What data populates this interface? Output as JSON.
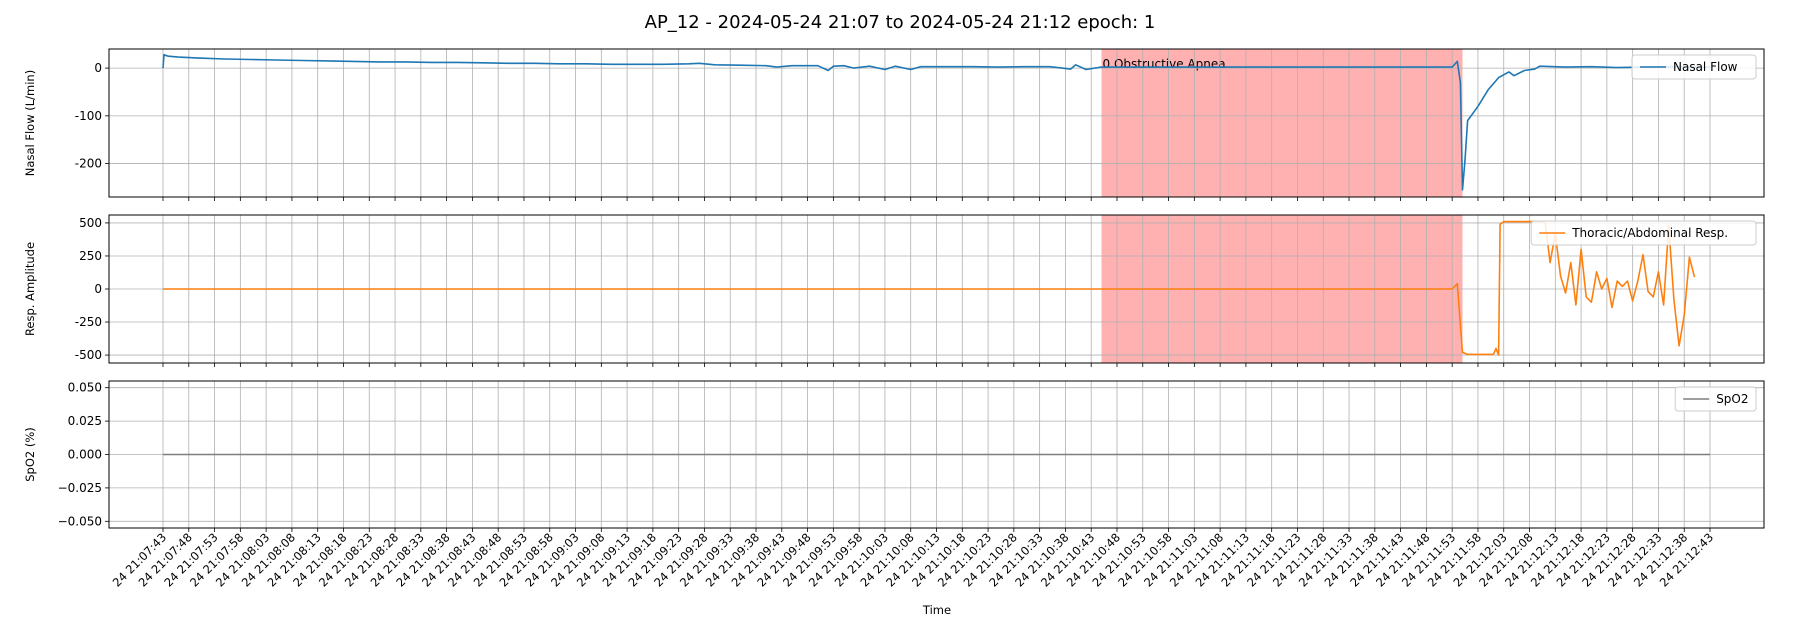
{
  "figure_title": "AP_12 - 2024-05-24 21:07 to 2024-05-24 21:12 epoch: 1",
  "x_axis_label": "Time",
  "x_tick_labels": [
    "24 21:07:43",
    "24 21:07:48",
    "24 21:07:53",
    "24 21:07:58",
    "24 21:08:03",
    "24 21:08:08",
    "24 21:08:13",
    "24 21:08:18",
    "24 21:08:23",
    "24 21:08:28",
    "24 21:08:33",
    "24 21:08:38",
    "24 21:08:43",
    "24 21:08:48",
    "24 21:08:53",
    "24 21:08:58",
    "24 21:09:03",
    "24 21:09:08",
    "24 21:09:13",
    "24 21:09:18",
    "24 21:09:23",
    "24 21:09:28",
    "24 21:09:33",
    "24 21:09:38",
    "24 21:09:43",
    "24 21:09:48",
    "24 21:09:53",
    "24 21:09:58",
    "24 21:10:03",
    "24 21:10:08",
    "24 21:10:13",
    "24 21:10:18",
    "24 21:10:23",
    "24 21:10:28",
    "24 21:10:33",
    "24 21:10:38",
    "24 21:10:43",
    "24 21:10:48",
    "24 21:10:53",
    "24 21:10:58",
    "24 21:11:03",
    "24 21:11:08",
    "24 21:11:13",
    "24 21:11:18",
    "24 21:11:23",
    "24 21:11:28",
    "24 21:11:33",
    "24 21:11:38",
    "24 21:11:43",
    "24 21:11:48",
    "24 21:11:53",
    "24 21:11:58",
    "24 21:12:03",
    "24 21:12:08",
    "24 21:12:13",
    "24 21:12:18",
    "24 21:12:23",
    "24 21:12:28",
    "24 21:12:33",
    "24 21:12:38",
    "24 21:12:43"
  ],
  "chart_data": [
    {
      "type": "line",
      "ylabel": "Nasal Flow (L/min)",
      "xlim": [
        "2024-05-24 21:07:43",
        "2024-05-24 21:12:43"
      ],
      "ylim": [
        -270,
        40
      ],
      "yticks": [
        0,
        -100,
        -200
      ],
      "grid": true,
      "legend_position": "upper right",
      "event_region": {
        "label": "0 Obstructive Apnea",
        "start": "2024-05-24 21:10:45",
        "end": "2024-05-24 21:11:55",
        "color": "#ffb0b0"
      },
      "series": [
        {
          "name": "Nasal Flow",
          "color": "#1f77b4",
          "points": [
            [
              "2024-05-24 21:07:43",
              0
            ],
            [
              "2024-05-24 21:07:43.2",
              28
            ],
            [
              "2024-05-24 21:07:44",
              25
            ],
            [
              "2024-05-24 21:07:46",
              23
            ],
            [
              "2024-05-24 21:07:50",
              21
            ],
            [
              "2024-05-24 21:07:55",
              19
            ],
            [
              "2024-05-24 21:08:00",
              18
            ],
            [
              "2024-05-24 21:08:05",
              17
            ],
            [
              "2024-05-24 21:08:10",
              16
            ],
            [
              "2024-05-24 21:08:15",
              15
            ],
            [
              "2024-05-24 21:08:20",
              14
            ],
            [
              "2024-05-24 21:08:25",
              13
            ],
            [
              "2024-05-24 21:08:30",
              13
            ],
            [
              "2024-05-24 21:08:35",
              12
            ],
            [
              "2024-05-24 21:08:40",
              12
            ],
            [
              "2024-05-24 21:08:45",
              11
            ],
            [
              "2024-05-24 21:08:50",
              10
            ],
            [
              "2024-05-24 21:08:55",
              10
            ],
            [
              "2024-05-24 21:09:00",
              9
            ],
            [
              "2024-05-24 21:09:05",
              9
            ],
            [
              "2024-05-24 21:09:10",
              8
            ],
            [
              "2024-05-24 21:09:15",
              8
            ],
            [
              "2024-05-24 21:09:20",
              8
            ],
            [
              "2024-05-24 21:09:25",
              9
            ],
            [
              "2024-05-24 21:09:27",
              10
            ],
            [
              "2024-05-24 21:09:30",
              7
            ],
            [
              "2024-05-24 21:09:35",
              6
            ],
            [
              "2024-05-24 21:09:40",
              5
            ],
            [
              "2024-05-24 21:09:42",
              2
            ],
            [
              "2024-05-24 21:09:45",
              5
            ],
            [
              "2024-05-24 21:09:50",
              5
            ],
            [
              "2024-05-24 21:09:52",
              -5
            ],
            [
              "2024-05-24 21:09:53",
              4
            ],
            [
              "2024-05-24 21:09:55",
              5
            ],
            [
              "2024-05-24 21:09:57",
              0
            ],
            [
              "2024-05-24 21:10:00",
              4
            ],
            [
              "2024-05-24 21:10:03",
              -3
            ],
            [
              "2024-05-24 21:10:05",
              4
            ],
            [
              "2024-05-24 21:10:08",
              -3
            ],
            [
              "2024-05-24 21:10:10",
              3
            ],
            [
              "2024-05-24 21:10:15",
              3
            ],
            [
              "2024-05-24 21:10:20",
              3
            ],
            [
              "2024-05-24 21:10:25",
              2
            ],
            [
              "2024-05-24 21:10:30",
              3
            ],
            [
              "2024-05-24 21:10:35",
              3
            ],
            [
              "2024-05-24 21:10:39",
              -2
            ],
            [
              "2024-05-24 21:10:40",
              7
            ],
            [
              "2024-05-24 21:10:42",
              -3
            ],
            [
              "2024-05-24 21:10:45",
              2
            ],
            [
              "2024-05-24 21:10:55",
              2
            ],
            [
              "2024-05-24 21:11:05",
              2
            ],
            [
              "2024-05-24 21:11:15",
              2
            ],
            [
              "2024-05-24 21:11:25",
              2
            ],
            [
              "2024-05-24 21:11:35",
              2
            ],
            [
              "2024-05-24 21:11:45",
              2
            ],
            [
              "2024-05-24 21:11:53",
              2
            ],
            [
              "2024-05-24 21:11:54",
              14
            ],
            [
              "2024-05-24 21:11:54.6",
              -30
            ],
            [
              "2024-05-24 21:11:55",
              -255
            ],
            [
              "2024-05-24 21:11:55.5",
              -190
            ],
            [
              "2024-05-24 21:11:56",
              -110
            ],
            [
              "2024-05-24 21:11:58",
              -80
            ],
            [
              "2024-05-24 21:12:00",
              -45
            ],
            [
              "2024-05-24 21:12:02",
              -20
            ],
            [
              "2024-05-24 21:12:04",
              -8
            ],
            [
              "2024-05-24 21:12:05",
              -16
            ],
            [
              "2024-05-24 21:12:07",
              -5
            ],
            [
              "2024-05-24 21:12:09",
              -2
            ],
            [
              "2024-05-24 21:12:10",
              4
            ],
            [
              "2024-05-24 21:12:15",
              2
            ],
            [
              "2024-05-24 21:12:20",
              3
            ],
            [
              "2024-05-24 21:12:25",
              1
            ],
            [
              "2024-05-24 21:12:30",
              2
            ],
            [
              "2024-05-24 21:12:35",
              3
            ],
            [
              "2024-05-24 21:12:40",
              2
            ],
            [
              "2024-05-24 21:12:43",
              2
            ]
          ]
        }
      ]
    },
    {
      "type": "line",
      "ylabel": "Resp. Amplitude",
      "xlim": [
        "2024-05-24 21:07:43",
        "2024-05-24 21:12:43"
      ],
      "ylim": [
        -560,
        560
      ],
      "yticks": [
        500,
        250,
        0,
        -250,
        -500
      ],
      "grid": true,
      "legend_position": "upper right",
      "event_region": {
        "start": "2024-05-24 21:10:45",
        "end": "2024-05-24 21:11:55",
        "color": "#ffb0b0"
      },
      "series": [
        {
          "name": "Thoracic/Abdominal Resp.",
          "color": "#ff7f0e",
          "points": [
            [
              "2024-05-24 21:07:43",
              0
            ],
            [
              "2024-05-24 21:11:53",
              0
            ],
            [
              "2024-05-24 21:11:54",
              40
            ],
            [
              "2024-05-24 21:11:55",
              -480
            ],
            [
              "2024-05-24 21:11:56",
              -495
            ],
            [
              "2024-05-24 21:12:01",
              -495
            ],
            [
              "2024-05-24 21:12:01.5",
              -450
            ],
            [
              "2024-05-24 21:12:02",
              -500
            ],
            [
              "2024-05-24 21:12:02.3",
              490
            ],
            [
              "2024-05-24 21:12:03",
              510
            ],
            [
              "2024-05-24 21:12:11",
              510
            ],
            [
              "2024-05-24 21:12:12",
              200
            ],
            [
              "2024-05-24 21:12:13",
              420
            ],
            [
              "2024-05-24 21:12:14",
              100
            ],
            [
              "2024-05-24 21:12:15",
              -30
            ],
            [
              "2024-05-24 21:12:16",
              200
            ],
            [
              "2024-05-24 21:12:17",
              -120
            ],
            [
              "2024-05-24 21:12:18",
              300
            ],
            [
              "2024-05-24 21:12:19",
              -60
            ],
            [
              "2024-05-24 21:12:20",
              -100
            ],
            [
              "2024-05-24 21:12:21",
              130
            ],
            [
              "2024-05-24 21:12:22",
              0
            ],
            [
              "2024-05-24 21:12:23",
              80
            ],
            [
              "2024-05-24 21:12:24",
              -140
            ],
            [
              "2024-05-24 21:12:25",
              60
            ],
            [
              "2024-05-24 21:12:26",
              20
            ],
            [
              "2024-05-24 21:12:27",
              60
            ],
            [
              "2024-05-24 21:12:28",
              -90
            ],
            [
              "2024-05-24 21:12:29",
              60
            ],
            [
              "2024-05-24 21:12:30",
              260
            ],
            [
              "2024-05-24 21:12:31",
              -20
            ],
            [
              "2024-05-24 21:12:32",
              -60
            ],
            [
              "2024-05-24 21:12:33",
              130
            ],
            [
              "2024-05-24 21:12:34",
              -120
            ],
            [
              "2024-05-24 21:12:35",
              480
            ],
            [
              "2024-05-24 21:12:36",
              -80
            ],
            [
              "2024-05-24 21:12:37",
              -430
            ],
            [
              "2024-05-24 21:12:38",
              -200
            ],
            [
              "2024-05-24 21:12:39",
              240
            ],
            [
              "2024-05-24 21:12:40",
              90
            ]
          ]
        }
      ]
    },
    {
      "type": "line",
      "ylabel": "SpO2 (%)",
      "xlim": [
        "2024-05-24 21:07:43",
        "2024-05-24 21:12:43"
      ],
      "ylim": [
        -0.055,
        0.055
      ],
      "yticks": [
        "0.050",
        "0.025",
        "0.000",
        "−0.025",
        "−0.050"
      ],
      "grid": true,
      "legend_position": "upper right",
      "series": [
        {
          "name": "SpO2",
          "color": "#7f7f7f",
          "points": [
            [
              "2024-05-24 21:07:43",
              0
            ],
            [
              "2024-05-24 21:12:43",
              0
            ]
          ]
        }
      ]
    }
  ]
}
